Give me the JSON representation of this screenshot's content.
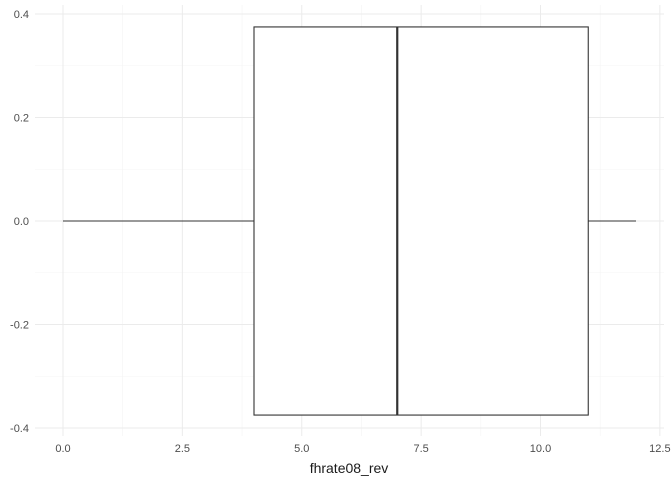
{
  "chart_data": {
    "type": "boxplot",
    "orientation": "horizontal",
    "title": "",
    "xlabel": "fhrate08_rev",
    "ylabel": "",
    "xlim": [
      -0.6,
      12.6
    ],
    "ylim": [
      -0.4,
      0.4
    ],
    "x_ticks": [
      0.0,
      2.5,
      5.0,
      7.5,
      10.0,
      12.5
    ],
    "x_tick_labels": [
      "0.0",
      "2.5",
      "5.0",
      "7.5",
      "10.0",
      "12.5"
    ],
    "y_ticks": [
      0.4,
      0.2,
      0.0,
      -0.2,
      -0.4
    ],
    "y_tick_labels": [
      "0.4",
      "0.2",
      "0.0",
      "-0.2",
      "-0.4"
    ],
    "grid": true,
    "legend": "none",
    "box": {
      "min": 0,
      "q1": 4,
      "median": 7,
      "q3": 11,
      "max": 12,
      "y_center": 0,
      "y_half_width": 0.375
    },
    "colors": {
      "box_stroke": "#333333",
      "box_fill": "#ffffff",
      "grid_major": "#ebebeb",
      "grid_minor": "#f4f4f4"
    }
  }
}
